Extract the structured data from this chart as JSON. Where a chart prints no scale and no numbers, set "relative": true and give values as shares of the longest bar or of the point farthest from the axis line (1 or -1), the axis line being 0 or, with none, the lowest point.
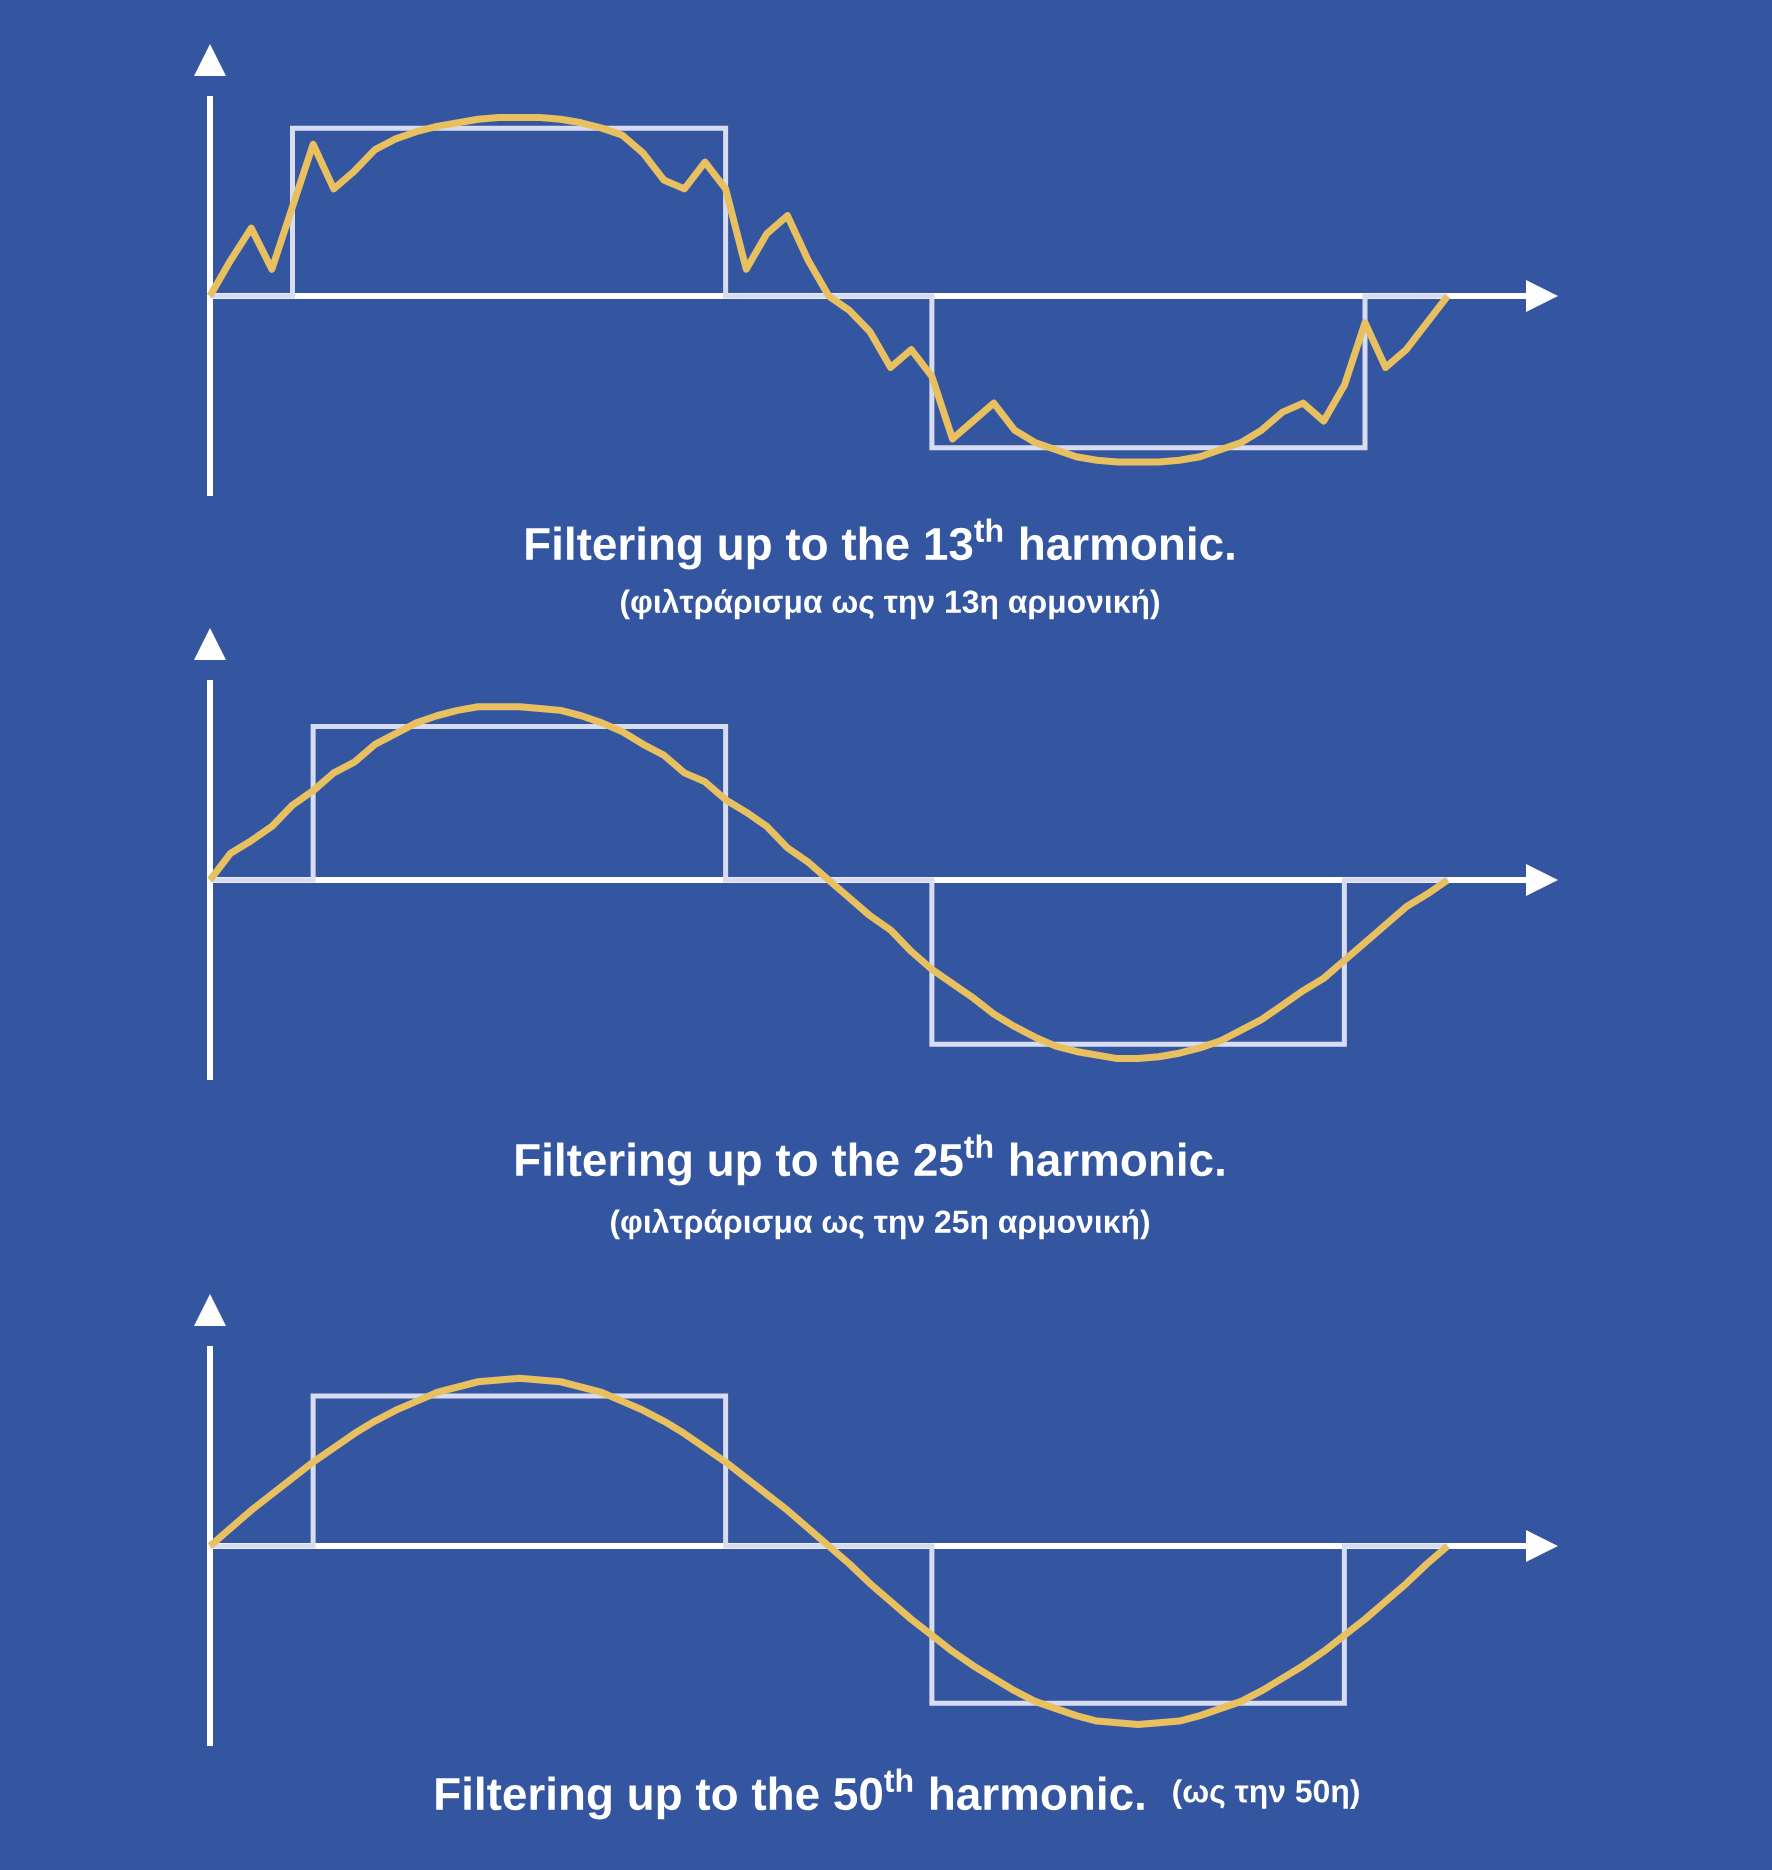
{
  "chart_data": [
    {
      "type": "line",
      "relative": true,
      "title": "Filtering up to the 13$^{th}$ harmonic.",
      "subtitle": "(φιλτράρισμα ως την 13η αρμονική)",
      "categories": [
        null,
        null,
        null,
        null,
        null,
        null,
        null,
        null,
        null,
        null,
        null,
        null,
        null,
        null,
        null,
        null,
        null,
        null,
        null,
        null,
        null,
        null,
        null,
        null,
        null,
        null,
        null,
        null,
        null,
        null,
        null,
        null,
        null,
        null,
        null,
        null,
        null,
        null,
        null,
        null,
        null,
        null,
        null,
        null,
        null,
        null,
        null,
        null,
        null,
        null,
        null,
        null,
        null,
        null,
        null,
        null,
        null,
        null,
        null,
        null,
        null
      ],
      "series": [
        {
          "type": "step",
          "color": "#d8dcf0",
          "values": [
            0,
            0,
            0,
            0,
            0.94,
            0.94,
            0.94,
            0.94,
            0.94,
            0.94,
            0.94,
            0.94,
            0.94,
            0.94,
            0.94,
            0.94,
            0.94,
            0.94,
            0.94,
            0.94,
            0.94,
            0.94,
            0.94,
            0.94,
            0.94,
            0,
            0,
            0,
            0,
            0,
            0,
            0,
            0,
            0,
            0,
            -0.85,
            -0.85,
            -0.85,
            -0.85,
            -0.85,
            -0.85,
            -0.85,
            -0.85,
            -0.85,
            -0.85,
            -0.85,
            -0.85,
            -0.85,
            -0.85,
            -0.85,
            -0.85,
            -0.85,
            -0.85,
            -0.85,
            -0.85,
            -0.85,
            0,
            0,
            0,
            0,
            0
          ]
        },
        {
          "color": "#e8c060",
          "values": [
            0,
            0.2,
            0.38,
            0.15,
            0.5,
            0.85,
            0.6,
            0.7,
            0.82,
            0.88,
            0.92,
            0.95,
            0.97,
            0.99,
            1,
            1,
            1,
            0.99,
            0.97,
            0.94,
            0.9,
            0.8,
            0.65,
            0.6,
            0.75,
            0.6,
            0.15,
            0.35,
            0.45,
            0.2,
            0,
            -0.08,
            -0.2,
            -0.4,
            -0.3,
            -0.45,
            -0.8,
            -0.7,
            -0.6,
            -0.75,
            -0.82,
            -0.86,
            -0.9,
            -0.92,
            -0.93,
            -0.93,
            -0.93,
            -0.92,
            -0.9,
            -0.86,
            -0.82,
            -0.75,
            -0.65,
            -0.6,
            -0.7,
            -0.5,
            -0.15,
            -0.4,
            -0.3,
            -0.15,
            0
          ]
        }
      ]
    },
    {
      "type": "line",
      "relative": true,
      "title": "Filtering up to the 25$^{th}$ harmonic.",
      "subtitle": "(φιλτράρισμα ως την 25η αρμονική)",
      "categories": [
        null,
        null,
        null,
        null,
        null,
        null,
        null,
        null,
        null,
        null,
        null,
        null,
        null,
        null,
        null,
        null,
        null,
        null,
        null,
        null,
        null,
        null,
        null,
        null,
        null,
        null,
        null,
        null,
        null,
        null,
        null,
        null,
        null,
        null,
        null,
        null,
        null,
        null,
        null,
        null,
        null,
        null,
        null,
        null,
        null,
        null,
        null,
        null,
        null,
        null,
        null,
        null,
        null,
        null,
        null,
        null,
        null,
        null,
        null,
        null,
        null
      ],
      "series": [
        {
          "type": "step",
          "color": "#d8dcf0",
          "values": [
            0,
            0,
            0,
            0,
            0,
            0.86,
            0.86,
            0.86,
            0.86,
            0.86,
            0.86,
            0.86,
            0.86,
            0.86,
            0.86,
            0.86,
            0.86,
            0.86,
            0.86,
            0.86,
            0.86,
            0.86,
            0.86,
            0.86,
            0.86,
            0,
            0,
            0,
            0,
            0,
            0,
            0,
            0,
            0,
            0,
            -0.92,
            -0.92,
            -0.92,
            -0.92,
            -0.92,
            -0.92,
            -0.92,
            -0.92,
            -0.92,
            -0.92,
            -0.92,
            -0.92,
            -0.92,
            -0.92,
            -0.92,
            -0.92,
            -0.92,
            -0.92,
            -0.92,
            -0.92,
            0,
            0,
            0,
            0,
            0,
            0
          ]
        },
        {
          "color": "#e8c060",
          "values": [
            0,
            0.15,
            0.22,
            0.3,
            0.42,
            0.5,
            0.6,
            0.66,
            0.76,
            0.82,
            0.88,
            0.92,
            0.95,
            0.97,
            0.97,
            0.97,
            0.96,
            0.95,
            0.92,
            0.88,
            0.83,
            0.76,
            0.7,
            0.6,
            0.55,
            0.45,
            0.38,
            0.3,
            0.18,
            0.1,
            0,
            -0.1,
            -0.2,
            -0.28,
            -0.4,
            -0.5,
            -0.58,
            -0.66,
            -0.75,
            -0.82,
            -0.88,
            -0.93,
            -0.96,
            -0.98,
            -1,
            -1,
            -0.99,
            -0.97,
            -0.94,
            -0.9,
            -0.84,
            -0.78,
            -0.7,
            -0.62,
            -0.55,
            -0.45,
            -0.35,
            -0.25,
            -0.15,
            -0.08,
            0
          ]
        }
      ]
    },
    {
      "type": "line",
      "relative": true,
      "title": "Filtering up to the 50$^{th}$ harmonic.",
      "subtitle": "(ως την 50η)",
      "categories": [
        null,
        null,
        null,
        null,
        null,
        null,
        null,
        null,
        null,
        null,
        null,
        null,
        null,
        null,
        null,
        null,
        null,
        null,
        null,
        null,
        null,
        null,
        null,
        null,
        null,
        null,
        null,
        null,
        null,
        null,
        null,
        null,
        null,
        null,
        null,
        null,
        null,
        null,
        null,
        null,
        null,
        null,
        null,
        null,
        null,
        null,
        null,
        null,
        null,
        null,
        null,
        null,
        null,
        null,
        null,
        null,
        null,
        null,
        null,
        null,
        null
      ],
      "series": [
        {
          "type": "step",
          "color": "#d8dcf0",
          "values": [
            0,
            0,
            0,
            0,
            0,
            0.84,
            0.84,
            0.84,
            0.84,
            0.84,
            0.84,
            0.84,
            0.84,
            0.84,
            0.84,
            0.84,
            0.84,
            0.84,
            0.84,
            0.84,
            0.84,
            0.84,
            0.84,
            0.84,
            0.84,
            0,
            0,
            0,
            0,
            0,
            0,
            0,
            0,
            0,
            0,
            -0.88,
            -0.88,
            -0.88,
            -0.88,
            -0.88,
            -0.88,
            -0.88,
            -0.88,
            -0.88,
            -0.88,
            -0.88,
            -0.88,
            -0.88,
            -0.88,
            -0.88,
            -0.88,
            -0.88,
            -0.88,
            -0.88,
            -0.88,
            0,
            0,
            0,
            0,
            0,
            0
          ]
        },
        {
          "color": "#e8c060",
          "values": [
            0,
            0.1,
            0.2,
            0.29,
            0.38,
            0.47,
            0.55,
            0.63,
            0.7,
            0.76,
            0.81,
            0.86,
            0.89,
            0.92,
            0.93,
            0.94,
            0.93,
            0.92,
            0.89,
            0.86,
            0.81,
            0.76,
            0.7,
            0.63,
            0.55,
            0.47,
            0.38,
            0.29,
            0.2,
            0.1,
            0,
            -0.1,
            -0.21,
            -0.31,
            -0.41,
            -0.5,
            -0.59,
            -0.67,
            -0.74,
            -0.81,
            -0.87,
            -0.91,
            -0.95,
            -0.98,
            -0.99,
            -1,
            -0.99,
            -0.98,
            -0.95,
            -0.91,
            -0.87,
            -0.81,
            -0.74,
            -0.67,
            -0.59,
            -0.5,
            -0.41,
            -0.31,
            -0.21,
            -0.1,
            0
          ]
        }
      ]
    }
  ]
}
